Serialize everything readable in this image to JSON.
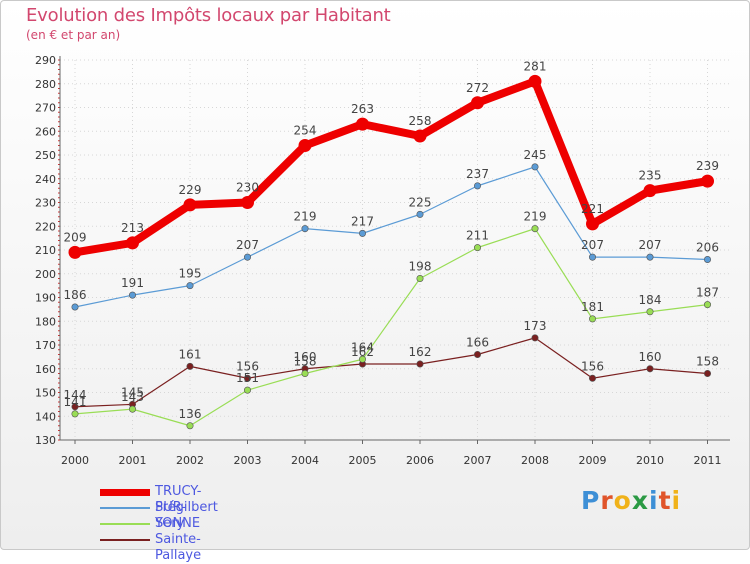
{
  "title": "Evolution des Impôts locaux par Habitant",
  "subtitle": "(en € et par an)",
  "brand": {
    "letters": [
      "P",
      "r",
      "o",
      "x",
      "i",
      "t",
      "i"
    ],
    "colors": [
      "#3d8fd6",
      "#e0542a",
      "#f0b21a",
      "#2b9a44",
      "#3d8fd6",
      "#e0542a",
      "#f0b21a"
    ]
  },
  "chart_data": {
    "type": "line",
    "title": "Evolution des Impôts locaux par Habitant",
    "subtitle": "(en € et par an)",
    "x": [
      "2000",
      "2001",
      "2002",
      "2003",
      "2004",
      "2005",
      "2006",
      "2007",
      "2008",
      "2009",
      "2010",
      "2011"
    ],
    "ylim": [
      130,
      290
    ],
    "yticks": [
      130,
      140,
      150,
      160,
      170,
      180,
      190,
      200,
      210,
      220,
      230,
      240,
      250,
      260,
      270,
      280,
      290
    ],
    "grid": true,
    "legend_position": "bottom-left",
    "series": [
      {
        "name": "TRUCY-SUR-YONNE",
        "color": "#ee0000",
        "emphasis": true,
        "values": [
          209,
          213,
          229,
          230,
          254,
          263,
          258,
          272,
          281,
          221,
          235,
          239
        ],
        "labels": [
          "209",
          "213",
          "229",
          "230",
          "254",
          "263",
          "258",
          "272",
          "281",
          "221",
          "235",
          "239"
        ]
      },
      {
        "name": "Prégilbert",
        "color": "#5b9bd5",
        "emphasis": false,
        "values": [
          186,
          191,
          195,
          207,
          219,
          217,
          225,
          237,
          245,
          207,
          207,
          206
        ],
        "labels": [
          "186",
          "191",
          "195",
          "207",
          "219",
          "217",
          "225",
          "237",
          "245",
          "207",
          "207",
          "206"
        ]
      },
      {
        "name": "Sery",
        "color": "#99dd55",
        "emphasis": false,
        "values": [
          141,
          143,
          136,
          151,
          158,
          164,
          198,
          211,
          219,
          181,
          184,
          187
        ],
        "labels": [
          "141",
          "143",
          "136",
          "151",
          "158",
          "164",
          "198",
          "211",
          "219",
          "181",
          "184",
          "187"
        ]
      },
      {
        "name": "Sainte-Pallaye",
        "color": "#7a2020",
        "emphasis": false,
        "values": [
          144,
          145,
          161,
          156,
          160,
          162,
          162,
          166,
          173,
          156,
          160,
          158
        ],
        "labels": [
          "144",
          "145",
          "161",
          "156",
          "160",
          "162",
          "162",
          "166",
          "173",
          "156",
          "160",
          "158"
        ]
      }
    ]
  }
}
